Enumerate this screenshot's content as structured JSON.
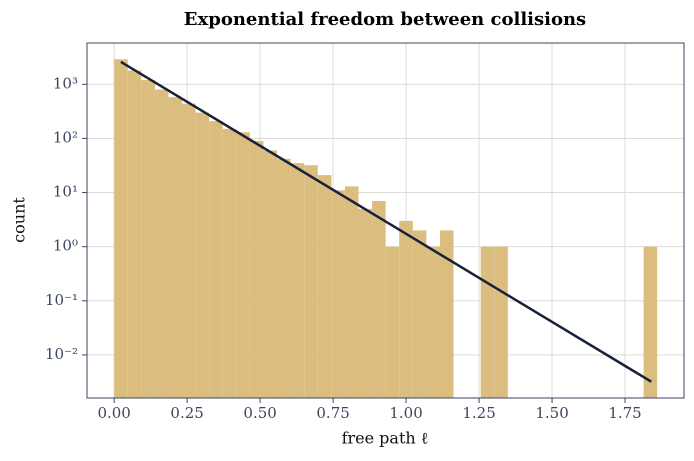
{
  "chart_data": {
    "type": "histogram",
    "title": "Exponential freedom between collisions",
    "x_label": "free path ℓ",
    "y_label": "count",
    "bins": [
      0,
      0.0465,
      0.093,
      0.1395,
      0.186,
      0.2325,
      0.279,
      0.3255,
      0.372,
      0.4185,
      0.465,
      0.5115,
      0.558,
      0.6045,
      0.651,
      0.6975,
      0.744,
      0.7905,
      0.837,
      0.8835,
      0.93,
      0.9765,
      1.023,
      1.0695,
      1.116,
      1.1625,
      1.209,
      1.2555,
      1.302,
      1.3485,
      1.395,
      1.4415,
      1.488,
      1.5345,
      1.581,
      1.6275,
      1.674,
      1.7205,
      1.767,
      1.8135,
      1.86
    ],
    "values": [
      2900,
      1800,
      1200,
      800,
      580,
      440,
      300,
      210,
      150,
      130,
      90,
      60,
      42,
      35,
      32,
      21,
      11,
      13,
      5,
      7,
      1,
      3,
      2,
      1,
      2,
      0,
      0,
      1,
      1,
      0,
      0,
      0,
      0,
      0,
      0,
      0,
      0,
      0,
      0,
      1
    ],
    "color": "#dbbd80",
    "fit": {
      "x": [
        0.023,
        1.84
      ],
      "values": [
        2600,
        0.0032
      ],
      "color": "#17213a"
    },
    "xlim": [
      -0.093,
      1.952
    ],
    "ylim": [
      0.0016,
      5800
    ],
    "log_y": true,
    "grid": true,
    "xticks": [
      {
        "value": 0,
        "label": "0.00"
      },
      {
        "value": 0.25,
        "label": "0.25"
      },
      {
        "value": 0.5,
        "label": "0.50"
      },
      {
        "value": 0.75,
        "label": "0.75"
      },
      {
        "value": 1,
        "label": "1.00"
      },
      {
        "value": 1.25,
        "label": "1.25"
      },
      {
        "value": 1.5,
        "label": "1.50"
      },
      {
        "value": 1.75,
        "label": "1.75"
      }
    ],
    "yticks": [
      {
        "value": 0.01,
        "label": "10⁻²"
      },
      {
        "value": 0.1,
        "label": "10⁻¹"
      },
      {
        "value": 1,
        "label": "10⁰"
      },
      {
        "value": 10,
        "label": "10¹"
      },
      {
        "value": 100,
        "label": "10²"
      },
      {
        "value": 1000,
        "label": "10³"
      }
    ]
  }
}
